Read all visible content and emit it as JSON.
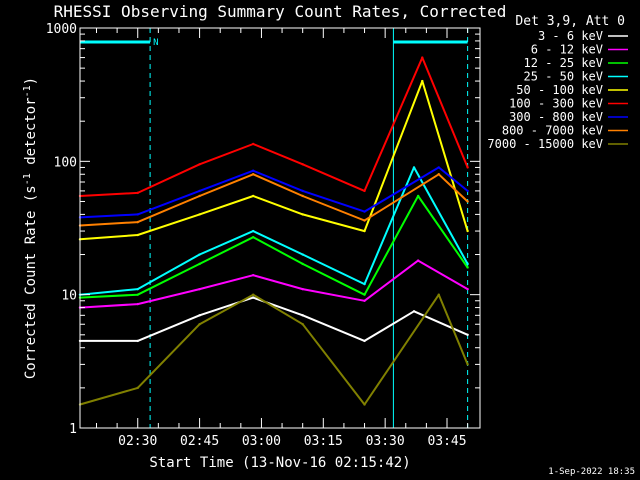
{
  "chart_data": {
    "type": "line",
    "title": "RHESSI Observing Summary Count Rates, Corrected",
    "xlabel": "Start Time (13-Nov-16 02:15:42)",
    "ylabel_main": "Corrected Count Rate (s",
    "ylabel_sup1": "-1",
    "ylabel_mid": " detector",
    "ylabel_sup2": "-1",
    "ylabel_end": ")",
    "yscale": "log",
    "ylim": [
      1,
      1000
    ],
    "y_ticks": [
      {
        "v": 1,
        "label": "1"
      },
      {
        "v": 10,
        "label": "10"
      },
      {
        "v": 100,
        "label": "100"
      },
      {
        "v": 1000,
        "label": "1000"
      }
    ],
    "xlim": [
      "02:16",
      "03:53"
    ],
    "x_ticks": [
      {
        "t": "02:30",
        "label": "02:30"
      },
      {
        "t": "02:45",
        "label": "02:45"
      },
      {
        "t": "03:00",
        "label": "03:00"
      },
      {
        "t": "03:15",
        "label": "03:15"
      },
      {
        "t": "03:30",
        "label": "03:30"
      },
      {
        "t": "03:45",
        "label": "03:45"
      }
    ],
    "legend_title": "Det 3,9, Att 0",
    "legend_position": "right",
    "series": [
      {
        "name": "3 - 6 keV",
        "color": "#ffffff",
        "x": [
          "02:16",
          "02:30",
          "02:45",
          "02:58",
          "03:10",
          "03:25",
          "03:37",
          "03:50"
        ],
        "y": [
          4.5,
          4.5,
          7,
          9.5,
          7,
          4.5,
          7.5,
          5
        ]
      },
      {
        "name": "6 - 12 keV",
        "color": "#ff00ff",
        "x": [
          "02:16",
          "02:30",
          "02:45",
          "02:58",
          "03:10",
          "03:25",
          "03:38",
          "03:50"
        ],
        "y": [
          8,
          8.5,
          11,
          14,
          11,
          9,
          18,
          11
        ]
      },
      {
        "name": "12 - 25 keV",
        "color": "#00ff00",
        "x": [
          "02:16",
          "02:30",
          "02:45",
          "02:58",
          "03:10",
          "03:25",
          "03:38",
          "03:50"
        ],
        "y": [
          9.5,
          10,
          17,
          27,
          17,
          10,
          55,
          16
        ]
      },
      {
        "name": "25 - 50 keV",
        "color": "#00ffff",
        "x": [
          "02:16",
          "02:30",
          "02:45",
          "02:58",
          "03:10",
          "03:25",
          "03:37",
          "03:50"
        ],
        "y": [
          10,
          11,
          20,
          30,
          20,
          12,
          90,
          17
        ]
      },
      {
        "name": "50 - 100 keV",
        "color": "#ffff00",
        "x": [
          "02:16",
          "02:30",
          "02:45",
          "02:58",
          "03:10",
          "03:25",
          "03:39",
          "03:50"
        ],
        "y": [
          26,
          28,
          40,
          55,
          40,
          30,
          400,
          30
        ]
      },
      {
        "name": "100 - 300 keV",
        "color": "#ff0000",
        "x": [
          "02:16",
          "02:30",
          "02:45",
          "02:58",
          "03:10",
          "03:25",
          "03:39",
          "03:50"
        ],
        "y": [
          55,
          58,
          95,
          135,
          95,
          60,
          600,
          90
        ]
      },
      {
        "name": "300 - 800 keV",
        "color": "#0000ff",
        "x": [
          "02:16",
          "02:30",
          "02:45",
          "02:58",
          "03:10",
          "03:25",
          "03:43",
          "03:50"
        ],
        "y": [
          38,
          40,
          60,
          85,
          60,
          42,
          90,
          60
        ]
      },
      {
        "name": "800 - 7000 keV",
        "color": "#ff8000",
        "x": [
          "02:16",
          "02:30",
          "02:45",
          "02:58",
          "03:10",
          "03:25",
          "03:43",
          "03:50"
        ],
        "y": [
          33,
          35,
          55,
          80,
          55,
          36,
          80,
          50
        ]
      },
      {
        "name": "7000 - 15000 keV",
        "color": "#808000",
        "x": [
          "02:16",
          "02:30",
          "02:45",
          "02:58",
          "03:10",
          "03:25",
          "03:43",
          "03:50"
        ],
        "y": [
          1.5,
          2,
          6,
          10,
          6,
          1.5,
          10,
          3
        ]
      }
    ],
    "annotations": [
      {
        "type": "band",
        "label": "N",
        "from": "02:16",
        "to": "02:33"
      },
      {
        "type": "band",
        "label": "",
        "from": "03:32",
        "to": "03:50"
      }
    ],
    "footer_date": "1-Sep-2022 18:35"
  }
}
